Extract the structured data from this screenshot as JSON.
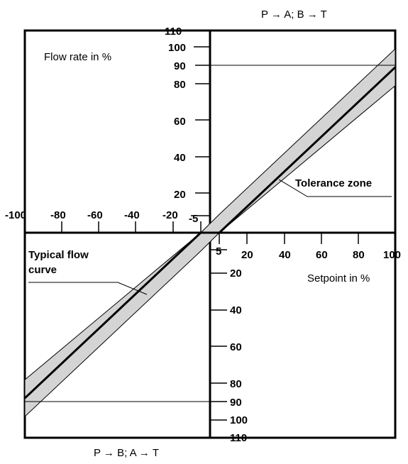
{
  "quadrant_labels": {
    "top": "P → A; B → T",
    "bottom": "P → B; A → T"
  },
  "y_axis_label": "Flow rate in %",
  "x_axis_label": "Setpoint in %",
  "annotations": {
    "tolerance_zone": "Tolerance zone",
    "typical_flow_curve_line1": "Typical flow",
    "typical_flow_curve_line2": "curve"
  },
  "chart_data": {
    "type": "line",
    "xlim": [
      -100,
      100
    ],
    "ylim": [
      -110,
      110
    ],
    "x_tick_labels_positive": [
      "5",
      "20",
      "40",
      "60",
      "80",
      "100"
    ],
    "x_tick_labels_negative": [
      "-100",
      "-80",
      "-60",
      "-40",
      "-20",
      "-5"
    ],
    "y_tick_labels_positive": [
      "110",
      "100",
      "90",
      "80",
      "60",
      "40",
      "20"
    ],
    "y_tick_labels_negative": [
      "20",
      "40",
      "60",
      "80",
      "90",
      "100",
      "110"
    ],
    "reference_lines": {
      "y_max_flow": 90,
      "y_min_flow": -90
    },
    "series": [
      {
        "type": "line",
        "x": [
          -100,
          -5,
          0,
          5,
          100
        ],
        "y": [
          -90,
          0,
          0,
          0,
          90
        ]
      }
    ],
    "tolerance_band": {
      "upper": [
        [
          -100,
          -80
        ],
        [
          -5,
          0
        ],
        [
          5,
          10
        ],
        [
          100,
          100
        ]
      ],
      "lower": [
        [
          -100,
          -100
        ],
        [
          -5,
          -10
        ],
        [
          5,
          0
        ],
        [
          100,
          80
        ]
      ]
    },
    "grid": false
  }
}
